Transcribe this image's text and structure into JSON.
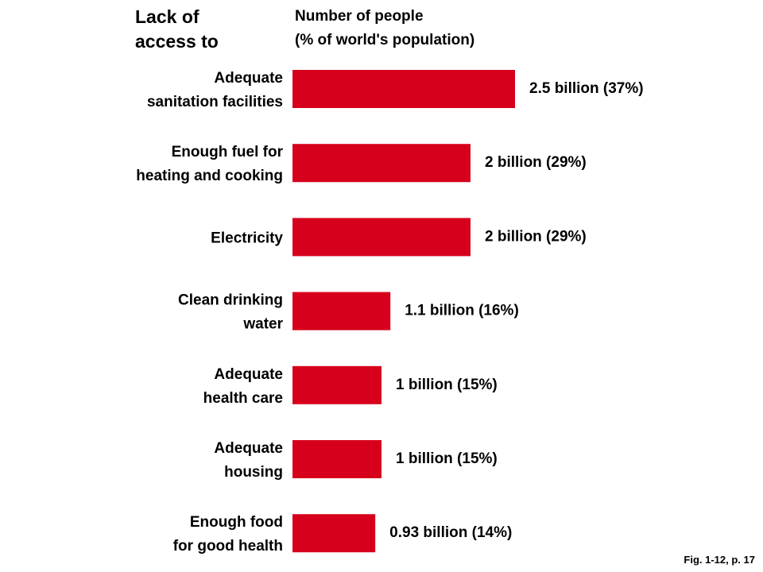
{
  "header": {
    "left_heading_line1": "Lack of",
    "left_heading_line2": "access to",
    "right_heading_line1": "Number of people",
    "right_heading_line2": "(% of world's population)"
  },
  "chart_data": {
    "type": "bar",
    "orientation": "horizontal",
    "unit": "billion people",
    "bar_color": "#d6001c",
    "categories": [
      [
        "Adequate",
        "sanitation facilities"
      ],
      [
        "Enough fuel for",
        "heating and cooking"
      ],
      [
        "Electricity"
      ],
      [
        "Clean drinking",
        "water"
      ],
      [
        "Adequate",
        "health care"
      ],
      [
        "Adequate",
        "housing"
      ],
      [
        "Enough food",
        "for good health"
      ]
    ],
    "values": [
      2.5,
      2.0,
      2.0,
      1.1,
      1.0,
      1.0,
      0.93
    ],
    "data_labels": [
      "2.5 billion (37%)",
      "2 billion (29%)",
      "2 billion (29%)",
      "1.1 billion (16%)",
      "1 billion (15%)",
      "1 billion (15%)",
      "0.93 billion (14%)"
    ]
  },
  "footnote": "Fig. 1-12, p. 17"
}
